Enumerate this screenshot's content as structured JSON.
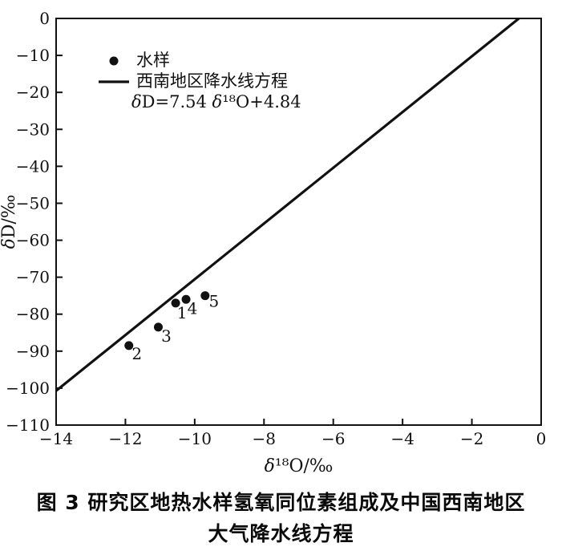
{
  "caption": {
    "line1": "图 3  研究区地热水样氢氧同位素组成及中国西南地区",
    "line2": "大气降水线方程"
  },
  "colors": {
    "ink": "#111111",
    "background": "#ffffff"
  },
  "chart_data": {
    "type": "scatter",
    "title": "",
    "xlabel": "δ¹⁸O/‰",
    "ylabel": "δD/‰",
    "xlim": [
      -14,
      0
    ],
    "ylim": [
      -110,
      0
    ],
    "xticks": [
      -14,
      -12,
      -10,
      -8,
      -6,
      -4,
      -2,
      0
    ],
    "yticks": [
      0,
      -10,
      -20,
      -30,
      -40,
      -50,
      -60,
      -70,
      -80,
      -90,
      -100,
      -110
    ],
    "grid": false,
    "frame": true,
    "legend_position": "top-left",
    "series": [
      {
        "name": "水样",
        "type": "scatter",
        "marker": "circle",
        "color": "#111111",
        "points": [
          {
            "label": "1",
            "x": -10.55,
            "y": -77,
            "label_dx": 8,
            "label_dy": 19
          },
          {
            "label": "2",
            "x": -11.9,
            "y": -88.5,
            "label_dx": 10,
            "label_dy": 17
          },
          {
            "label": "3",
            "x": -11.05,
            "y": -83.5,
            "label_dx": 10,
            "label_dy": 18
          },
          {
            "label": "4",
            "x": -10.25,
            "y": -76,
            "label_dx": 8,
            "label_dy": 18
          },
          {
            "label": "5",
            "x": -9.7,
            "y": -75,
            "label_dx": 11,
            "label_dy": 14
          }
        ]
      },
      {
        "name": "西南地区降水线方程",
        "type": "line",
        "color": "#111111",
        "slope": 7.54,
        "intercept": 4.84,
        "equation": "δD=7.54 δ¹⁸O+4.84"
      }
    ],
    "legend": {
      "entries": [
        {
          "swatch": "dot",
          "label": "水样"
        },
        {
          "swatch": "line",
          "label": "西南地区降水线方程"
        },
        {
          "swatch": "none",
          "label": "δD=7.54 δ¹⁸O+4.84"
        }
      ]
    }
  }
}
